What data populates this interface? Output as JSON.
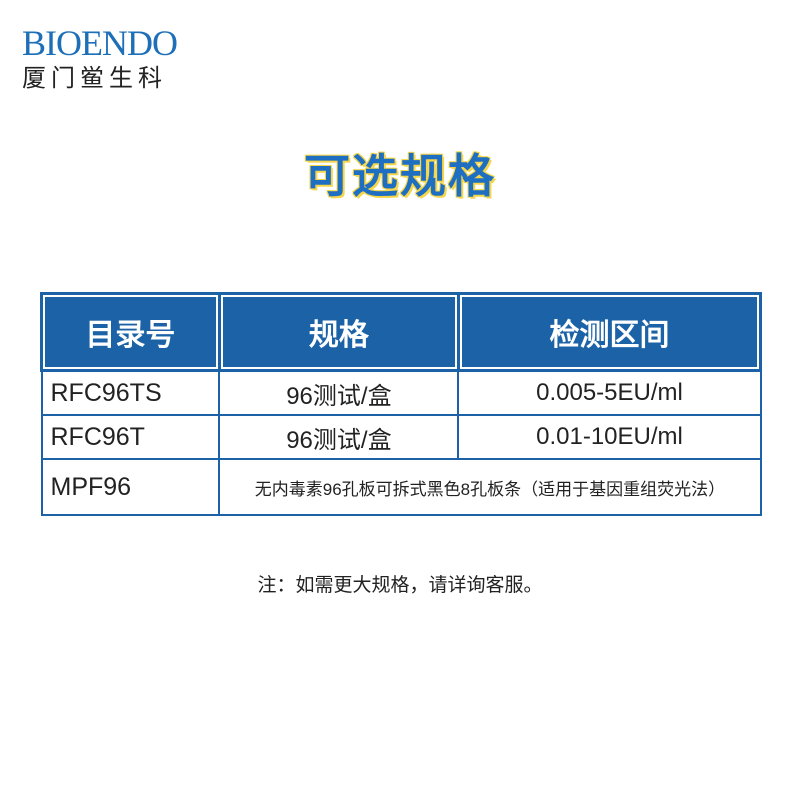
{
  "logo": {
    "brand": "BIOENDO",
    "name": "厦门鲎生科"
  },
  "title": "可选规格",
  "table": {
    "header": [
      "目录号",
      "规格",
      "检测区间"
    ],
    "rows": [
      [
        "RFC96TS",
        "96测试/盒",
        "0.005-5EU/ml"
      ],
      [
        "RFC96T",
        "96测试/盒",
        "0.01-10EU/ml"
      ],
      [
        "MPF96",
        "无内毒素96孔板可拆式黑色8孔板条（适用于基因重组荧光法）"
      ]
    ]
  },
  "note": "注：如需更大规格，请详询客服。"
}
